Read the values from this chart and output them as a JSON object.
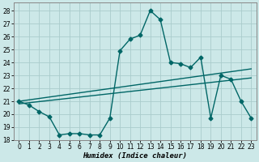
{
  "xlabel": "Humidex (Indice chaleur)",
  "background_color": "#cce8e8",
  "grid_color": "#aacccc",
  "line_color": "#006666",
  "xlim": [
    -0.5,
    23.5
  ],
  "ylim": [
    18,
    28.6
  ],
  "yticks": [
    18,
    19,
    20,
    21,
    22,
    23,
    24,
    25,
    26,
    27,
    28
  ],
  "xticks": [
    0,
    1,
    2,
    3,
    4,
    5,
    6,
    7,
    8,
    9,
    10,
    11,
    12,
    13,
    14,
    15,
    16,
    17,
    18,
    19,
    20,
    21,
    22,
    23
  ],
  "line1_x": [
    0,
    1,
    2,
    3,
    4,
    5,
    6,
    7,
    8,
    9,
    10,
    11,
    12,
    13,
    14,
    15,
    16,
    17,
    18,
    19,
    20,
    21,
    22,
    23
  ],
  "line1_y": [
    21.0,
    20.7,
    20.2,
    19.8,
    18.4,
    18.5,
    18.5,
    18.4,
    18.4,
    19.7,
    24.9,
    25.8,
    26.1,
    28.0,
    27.3,
    24.0,
    23.9,
    23.6,
    24.4,
    19.7,
    23.0,
    22.7,
    21.0,
    19.7
  ],
  "line2_x": [
    0,
    23
  ],
  "line2_y": [
    21.0,
    23.5
  ],
  "line3_x": [
    0,
    23
  ],
  "line3_y": [
    20.8,
    22.8
  ],
  "marker_size": 2.5,
  "line_width": 1.0
}
